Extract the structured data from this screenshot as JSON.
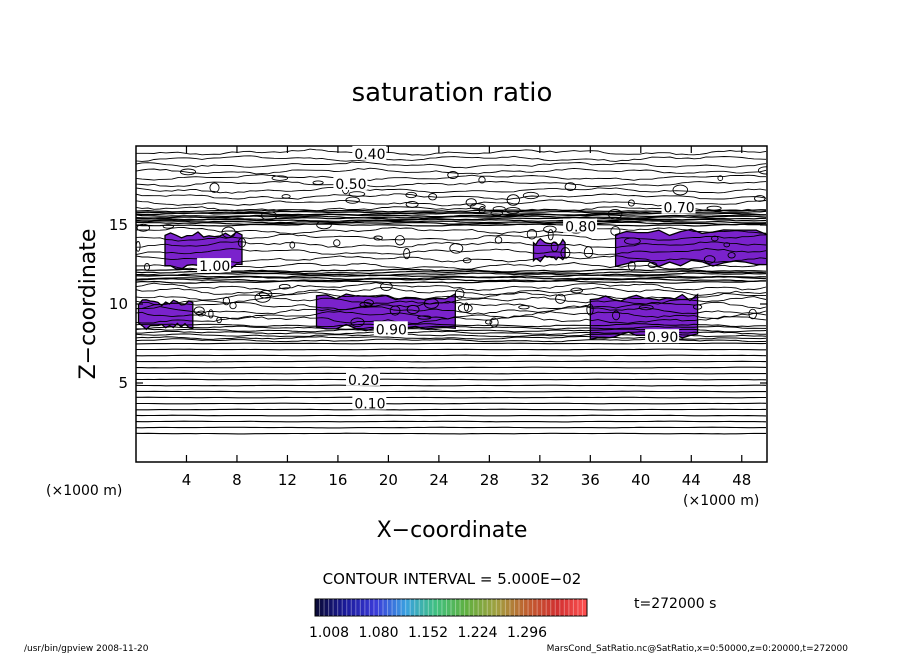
{
  "chart_data": {
    "type": "contour",
    "title": "saturation ratio",
    "xlabel": "X−coordinate",
    "ylabel": "Z−coordinate",
    "x_unit": "(×1000 m)",
    "y_unit": "(×1000 m)",
    "xlim": [
      0,
      50
    ],
    "ylim": [
      0,
      20
    ],
    "xticks": [
      4,
      8,
      12,
      16,
      20,
      24,
      28,
      32,
      36,
      40,
      44,
      48
    ],
    "yticks": [
      5,
      10,
      15
    ],
    "contour_interval": "CONTOUR INTERVAL = 5.000E−02",
    "contour_labels": [
      {
        "text": "0.40",
        "x": 17.3,
        "y": 19.5
      },
      {
        "text": "0.50",
        "x": 15.8,
        "y": 17.6
      },
      {
        "text": "0.70",
        "x": 41.8,
        "y": 16.1
      },
      {
        "text": "0.80",
        "x": 34.0,
        "y": 14.9
      },
      {
        "text": "1.00",
        "x": 5.0,
        "y": 12.4
      },
      {
        "text": "0.90",
        "x": 19.0,
        "y": 8.4
      },
      {
        "text": "0.90",
        "x": 40.5,
        "y": 7.9
      },
      {
        "text": "0.20",
        "x": 16.8,
        "y": 5.2
      },
      {
        "text": "0.10",
        "x": 17.3,
        "y": 3.7
      }
    ],
    "supersaturated_regions": [
      {
        "x": [
          2.3,
          8.4
        ],
        "y": [
          12.3,
          14.5
        ]
      },
      {
        "x": [
          0.2,
          4.5
        ],
        "y": [
          8.5,
          10.2
        ]
      },
      {
        "x": [
          14.3,
          25.3
        ],
        "y": [
          8.4,
          10.5
        ]
      },
      {
        "x": [
          36.0,
          44.5
        ],
        "y": [
          7.9,
          10.5
        ]
      },
      {
        "x": [
          31.5,
          34.0
        ],
        "y": [
          12.8,
          14.0
        ]
      },
      {
        "x": [
          38.0,
          50.0
        ],
        "y": [
          12.5,
          14.6
        ]
      }
    ],
    "colorbar": {
      "ticks": [
        "1.008",
        "1.080",
        "1.152",
        "1.224",
        "1.296"
      ],
      "colors": [
        "#0a0a33",
        "#1a1a99",
        "#3a3ad8",
        "#3aa0e0",
        "#40c080",
        "#60b040",
        "#a0a040",
        "#c06030",
        "#d03030",
        "#ff5050"
      ]
    },
    "time_label": "t=272000 s"
  },
  "footer": {
    "left": "/usr/bin/gpview  2008-11-20",
    "right": "MarsCond_SatRatio.nc@SatRatio,x=0:50000,z=0:20000,t=272000"
  },
  "colors": {
    "fill": "#7a22cc",
    "line": "#000000"
  }
}
